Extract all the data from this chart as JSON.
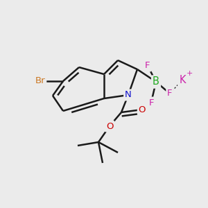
{
  "bg_color": "#ebebeb",
  "bond_color": "#1a1a1a",
  "bond_width": 1.8,
  "figsize": [
    3.0,
    3.0
  ],
  "dpi": 100,
  "colors": {
    "Br": "#cc7722",
    "N": "#1111cc",
    "B": "#22aa22",
    "F": "#cc22aa",
    "K": "#cc22aa",
    "O": "#cc0000",
    "C": "#1a1a1a"
  }
}
